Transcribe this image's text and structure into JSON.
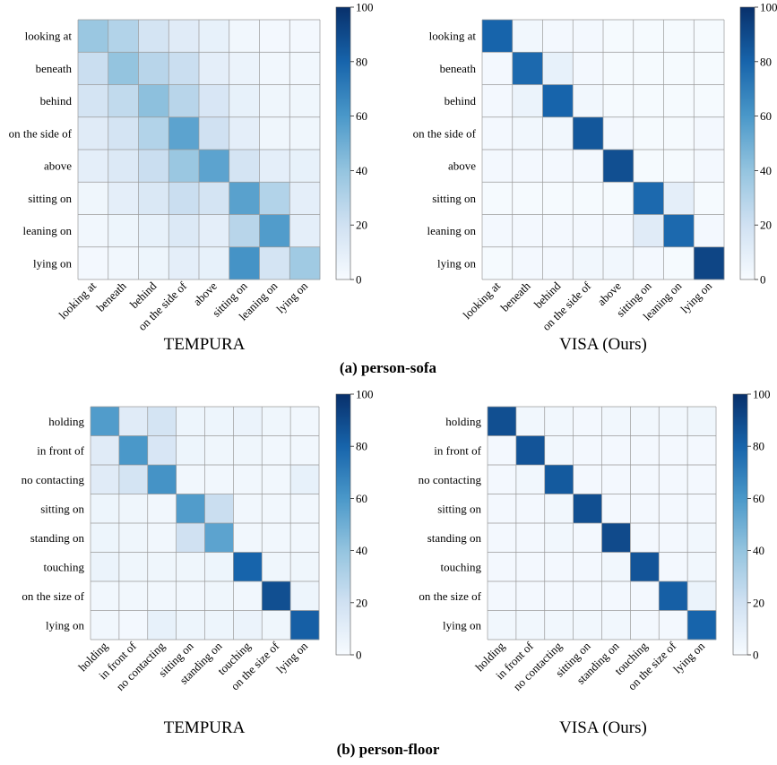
{
  "chart_data": [
    {
      "type": "heatmap",
      "title": "TEMPURA",
      "panel": "person-sofa",
      "labels": [
        "looking at",
        "beneath",
        "behind",
        "on the side of",
        "above",
        "sitting on",
        "leaning on",
        "lying on"
      ],
      "values": [
        [
          38,
          30,
          18,
          12,
          8,
          3,
          2,
          2
        ],
        [
          22,
          40,
          28,
          22,
          10,
          6,
          3,
          3
        ],
        [
          18,
          25,
          42,
          28,
          16,
          8,
          4,
          4
        ],
        [
          12,
          18,
          30,
          55,
          20,
          10,
          4,
          4
        ],
        [
          10,
          14,
          22,
          38,
          55,
          18,
          10,
          8
        ],
        [
          4,
          10,
          15,
          22,
          18,
          56,
          30,
          10
        ],
        [
          3,
          5,
          8,
          14,
          10,
          28,
          58,
          10
        ],
        [
          2,
          3,
          5,
          10,
          8,
          62,
          18,
          36
        ]
      ],
      "vmin": 0,
      "vmax": 100,
      "colorbar_ticks": [
        0,
        20,
        40,
        60,
        80,
        100
      ]
    },
    {
      "type": "heatmap",
      "title": "VISA (Ours)",
      "panel": "person-sofa",
      "labels": [
        "looking at",
        "beneath",
        "behind",
        "on the side of",
        "above",
        "sitting on",
        "leaning on",
        "lying on"
      ],
      "values": [
        [
          80,
          3,
          2,
          2,
          1,
          1,
          1,
          1
        ],
        [
          2,
          78,
          8,
          2,
          1,
          1,
          1,
          1
        ],
        [
          2,
          6,
          80,
          3,
          1,
          1,
          1,
          1
        ],
        [
          2,
          3,
          3,
          85,
          2,
          1,
          1,
          2
        ],
        [
          2,
          2,
          2,
          2,
          88,
          1,
          1,
          2
        ],
        [
          1,
          1,
          1,
          1,
          1,
          78,
          10,
          1
        ],
        [
          2,
          2,
          2,
          2,
          2,
          12,
          78,
          2
        ],
        [
          1,
          2,
          2,
          3,
          3,
          2,
          1,
          92
        ]
      ],
      "vmin": 0,
      "vmax": 100,
      "colorbar_ticks": [
        0,
        20,
        40,
        60,
        80,
        100
      ]
    },
    {
      "type": "heatmap",
      "title": "TEMPURA",
      "panel": "person-floor",
      "labels": [
        "holding",
        "in front of",
        "no contacting",
        "sitting on",
        "standing on",
        "touching",
        "on the size of",
        "lying on"
      ],
      "values": [
        [
          58,
          12,
          18,
          5,
          5,
          6,
          4,
          3
        ],
        [
          12,
          60,
          16,
          5,
          4,
          4,
          3,
          3
        ],
        [
          12,
          18,
          62,
          3,
          3,
          3,
          3,
          8
        ],
        [
          5,
          4,
          3,
          58,
          22,
          3,
          3,
          3
        ],
        [
          5,
          4,
          3,
          20,
          55,
          3,
          3,
          3
        ],
        [
          6,
          4,
          4,
          4,
          5,
          80,
          4,
          4
        ],
        [
          3,
          3,
          3,
          3,
          4,
          3,
          88,
          5
        ],
        [
          3,
          2,
          8,
          5,
          5,
          6,
          4,
          82
        ]
      ],
      "vmin": 0,
      "vmax": 100,
      "colorbar_ticks": [
        0,
        20,
        40,
        60,
        80,
        100
      ]
    },
    {
      "type": "heatmap",
      "title": "VISA (Ours)",
      "panel": "person-floor",
      "labels": [
        "holding",
        "in front of",
        "no contacting",
        "sitting on",
        "standing on",
        "touching",
        "on the size of",
        "lying on"
      ],
      "values": [
        [
          88,
          3,
          3,
          2,
          3,
          3,
          3,
          4
        ],
        [
          2,
          86,
          3,
          2,
          2,
          2,
          2,
          2
        ],
        [
          2,
          3,
          84,
          2,
          2,
          2,
          2,
          2
        ],
        [
          2,
          2,
          3,
          88,
          2,
          2,
          2,
          2
        ],
        [
          2,
          2,
          3,
          2,
          90,
          2,
          2,
          3
        ],
        [
          2,
          2,
          2,
          2,
          3,
          86,
          2,
          3
        ],
        [
          2,
          2,
          2,
          2,
          2,
          2,
          82,
          6
        ],
        [
          3,
          3,
          3,
          3,
          3,
          2,
          2,
          80
        ]
      ],
      "vmin": 0,
      "vmax": 100,
      "colorbar_ticks": [
        0,
        20,
        40,
        60,
        80,
        100
      ]
    }
  ],
  "captions": {
    "a": "(a) person-sofa",
    "b": "(b) person-floor"
  }
}
